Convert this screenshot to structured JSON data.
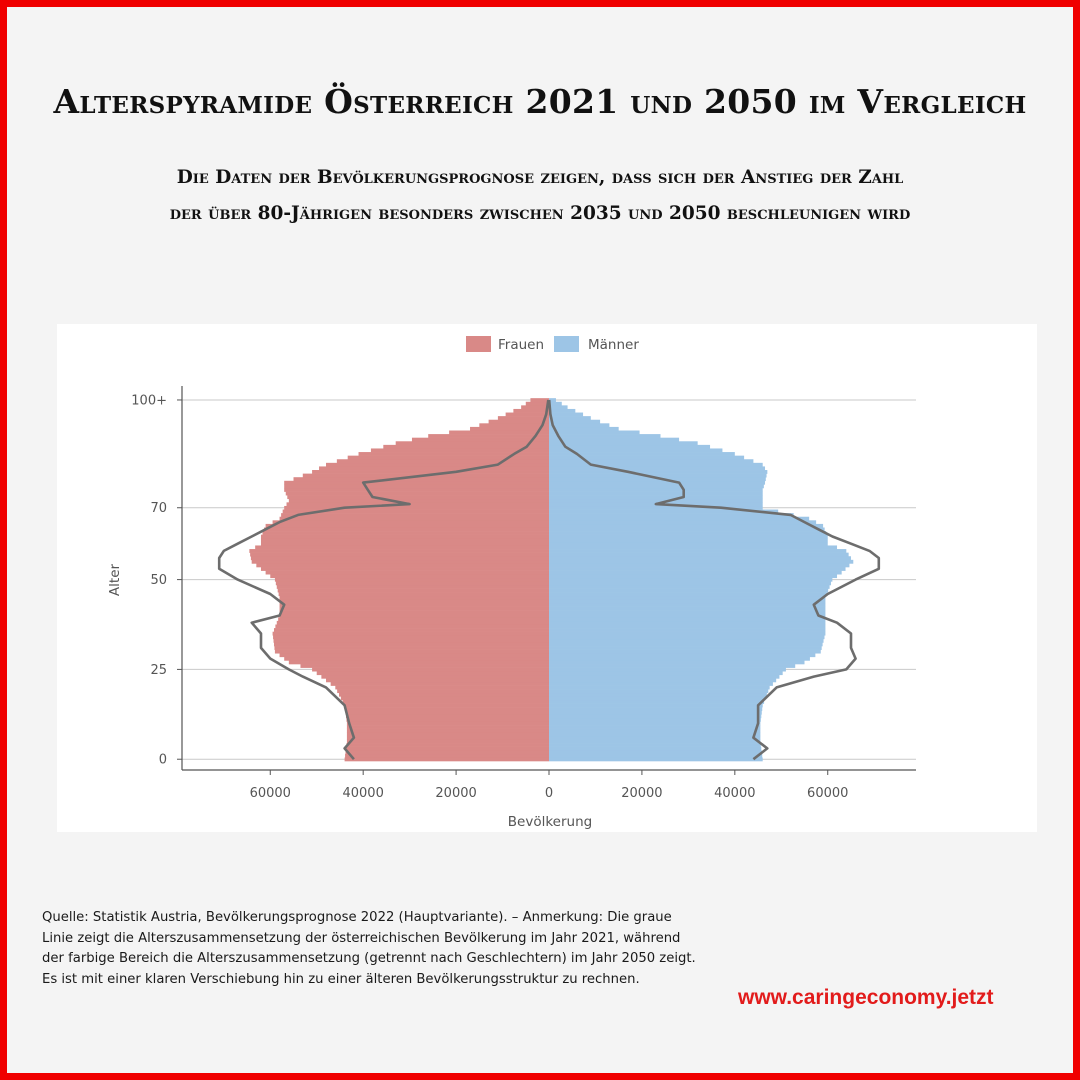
{
  "title": "Alterspyramide Österreich 2021 und 2050 im Vergleich",
  "subtitle_lines": [
    "Die Daten der Bevölkerungsprognose zeigen, dass sich der Anstieg der Zahl",
    "der über 80-Jährigen besonders zwischen 2035 und 2050 beschleunigen wird"
  ],
  "source_note": "Quelle: Statistik Austria, Bevölkerungsprognose 2022 (Hauptvariante). – Anmerkung: Die graue Linie zeigt die Alterszusammensetzung der österreichischen Bevölkerung im Jahr 2021, während der farbige Bereich die Alterszusammensetzung (getrennt nach Geschlechtern) im Jahr 2050 zeigt. Es ist mit einer klaren Verschiebung hin zu einer älteren Bevölkerungsstruktur zu rechnen.",
  "website": "www.caringeconomy.jetzt",
  "colors": {
    "frame": "#f00000",
    "frauen": "#d98987",
    "maenner": "#9dc5e6",
    "line_2021": "#6d6d6d",
    "website": "#e21b1b"
  },
  "chart_data": {
    "type": "bar",
    "orientation": "horizontal-population-pyramid",
    "legend": [
      "Frauen",
      "Männer"
    ],
    "legend_position": "top",
    "xlabel": "Bevölkerung",
    "ylabel": "Alter",
    "xlim": [
      -79000,
      79000
    ],
    "ylim": [
      -3,
      105
    ],
    "x_ticks": [
      -60000,
      -40000,
      -20000,
      0,
      20000,
      40000,
      60000
    ],
    "x_tick_labels": [
      "60000",
      "40000",
      "20000",
      "0",
      "20000",
      "40000",
      "60000"
    ],
    "y_ticks": [
      0,
      25,
      50,
      70,
      100
    ],
    "y_tick_labels": [
      "0",
      "25",
      "50",
      "70",
      "100+"
    ],
    "grid": "horizontal",
    "series": [
      {
        "name": "Frauen",
        "year": 2050,
        "ages": [
          0,
          5,
          10,
          15,
          20,
          25,
          27,
          30,
          35,
          40,
          45,
          50,
          52,
          55,
          58,
          60,
          62,
          65,
          67,
          70,
          72,
          75,
          77,
          80,
          82,
          85,
          88,
          90,
          92,
          95,
          98,
          100
        ],
        "values": [
          44000,
          43500,
          43500,
          44000,
          46000,
          51000,
          56000,
          59000,
          59500,
          58000,
          58000,
          59000,
          61000,
          64000,
          64500,
          62000,
          62000,
          61000,
          58000,
          57000,
          56000,
          57000,
          57000,
          51000,
          48000,
          41000,
          33000,
          26000,
          17000,
          11000,
          6000,
          4000
        ]
      },
      {
        "name": "Männer",
        "year": 2050,
        "ages": [
          0,
          5,
          10,
          15,
          20,
          25,
          27,
          30,
          35,
          40,
          45,
          50,
          52,
          55,
          58,
          60,
          62,
          65,
          67,
          70,
          72,
          75,
          77,
          80,
          82,
          85,
          88,
          90,
          92,
          95,
          98,
          100
        ],
        "values": [
          46000,
          45500,
          45500,
          46000,
          47500,
          51000,
          55000,
          58500,
          59500,
          59500,
          59500,
          61000,
          63000,
          65500,
          64000,
          60000,
          60000,
          59000,
          56000,
          46000,
          46000,
          46000,
          46500,
          47000,
          46000,
          40000,
          32000,
          24000,
          15000,
          9000,
          4000,
          1500
        ]
      },
      {
        "name": "Frauen 2021",
        "year": 2021,
        "ages": [
          0,
          3,
          6,
          10,
          15,
          20,
          23,
          25,
          28,
          31,
          35,
          38,
          40,
          43,
          46,
          50,
          53,
          56,
          58,
          60,
          62,
          64,
          66,
          68,
          70,
          71,
          73,
          75,
          77,
          80,
          82,
          85,
          87,
          90,
          93,
          96,
          100
        ],
        "values": [
          42000,
          44000,
          42000,
          43000,
          44000,
          48000,
          53000,
          56000,
          60000,
          62000,
          62000,
          64000,
          58000,
          57000,
          60000,
          67000,
          71000,
          71000,
          70000,
          67000,
          64000,
          61000,
          58000,
          54000,
          44000,
          30000,
          38000,
          39000,
          40000,
          20000,
          11000,
          7500,
          4800,
          2900,
          1400,
          600,
          150
        ]
      },
      {
        "name": "Männer 2021",
        "year": 2021,
        "ages": [
          0,
          3,
          6,
          10,
          15,
          20,
          23,
          25,
          28,
          31,
          35,
          38,
          40,
          43,
          46,
          50,
          53,
          56,
          58,
          60,
          62,
          64,
          66,
          68,
          70,
          71,
          73,
          75,
          77,
          80,
          82,
          85,
          87,
          90,
          93,
          96,
          100
        ],
        "values": [
          44000,
          47000,
          44000,
          45000,
          45000,
          49000,
          57000,
          64000,
          66000,
          65000,
          65000,
          62000,
          58000,
          57000,
          60000,
          66000,
          71000,
          71000,
          69000,
          65000,
          61000,
          58000,
          55000,
          52000,
          37000,
          23000,
          29000,
          29000,
          28000,
          17000,
          9000,
          6000,
          3500,
          2000,
          800,
          300,
          50
        ]
      }
    ]
  }
}
